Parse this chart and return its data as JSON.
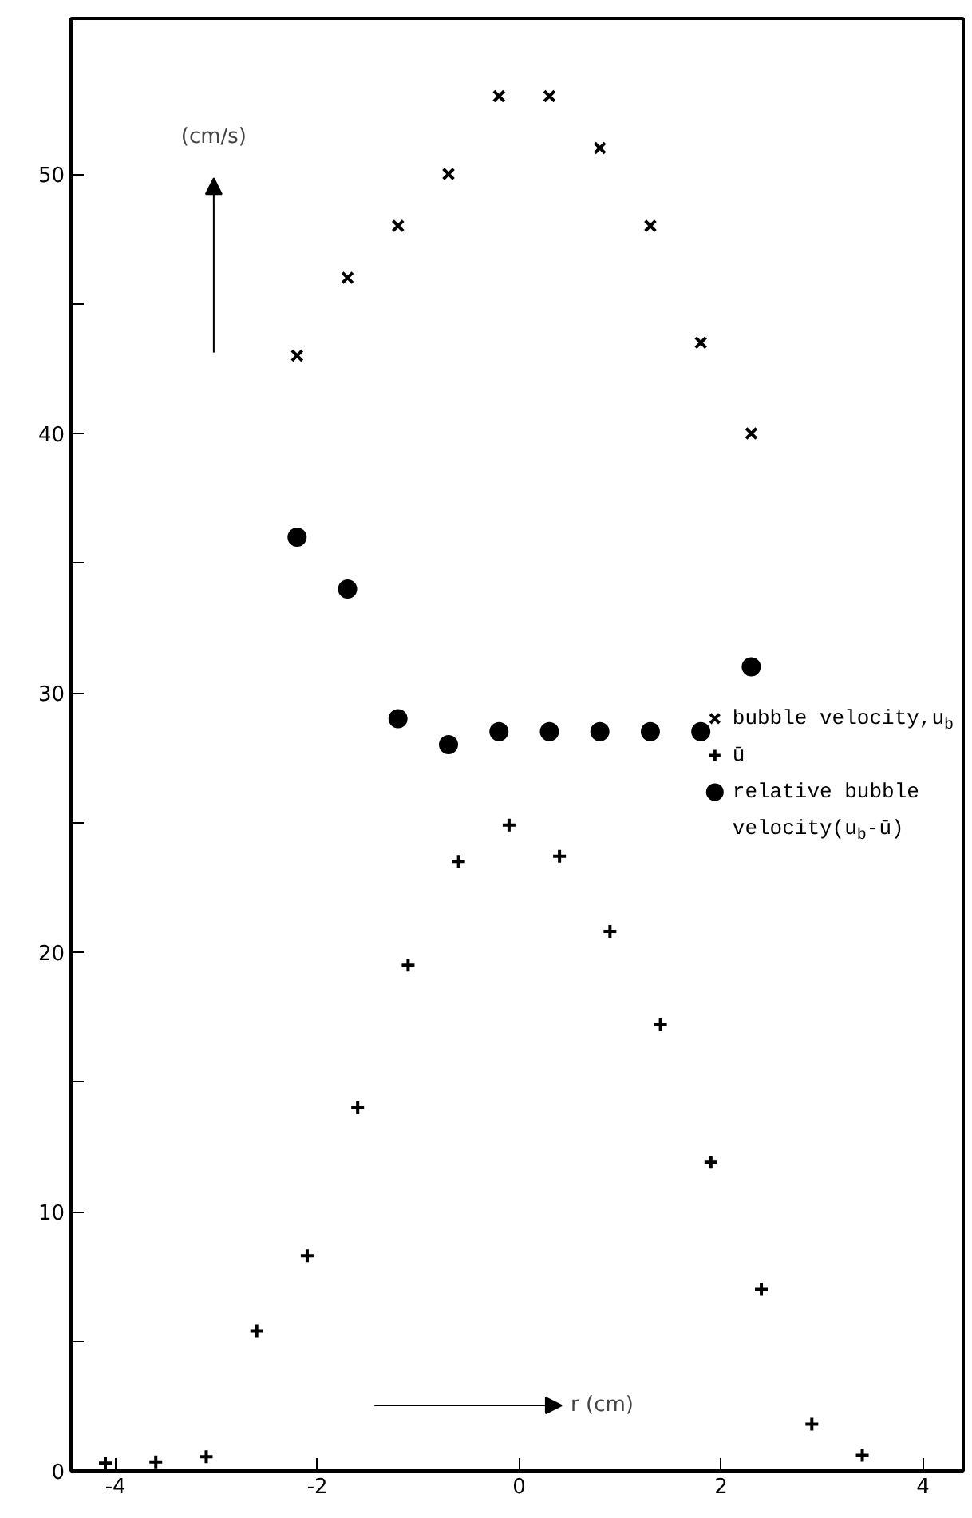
{
  "chart_data": {
    "type": "scatter",
    "xlabel": "r (cm)",
    "ylabel": "(cm/s)",
    "xlim": [
      -4.44,
      4.4
    ],
    "ylim": [
      0,
      56
    ],
    "xticks": [
      -4,
      -2,
      0,
      2,
      4
    ],
    "yticks": [
      0,
      {
        "value": 5,
        "label": null
      },
      10,
      {
        "value": 15,
        "label": null
      },
      20,
      {
        "value": 25,
        "label": null
      },
      30,
      {
        "value": 35,
        "label": null
      },
      40,
      {
        "value": 45,
        "label": null
      },
      50
    ],
    "grid": false,
    "legend": "center right",
    "series": [
      {
        "name": "bubble velocity,u$_{b}$",
        "color": "#000000",
        "marker": "x",
        "x": [
          -2.2,
          -1.7,
          -1.2,
          -0.7,
          -0.2,
          0.3,
          0.8,
          1.3,
          1.8,
          2.3
        ],
        "values": [
          43,
          46,
          48,
          50,
          53,
          53,
          51,
          48,
          43.5,
          40
        ]
      },
      {
        "name": "ū",
        "color": "#000000",
        "marker": "cross",
        "x": [
          -4.1,
          -3.6,
          -3.1,
          -2.6,
          -2.1,
          -1.6,
          -1.1,
          -0.6,
          -0.1,
          0.4,
          0.9,
          1.4,
          1.9,
          2.4,
          2.9,
          3.4
        ],
        "values": [
          0.3,
          0.35,
          0.55,
          5.4,
          8.3,
          14,
          19.5,
          23.5,
          24.9,
          23.7,
          20.8,
          17.2,
          11.9,
          7,
          1.8,
          0.6
        ]
      },
      {
        "name": "relative bubble velocity(u$_{b}$-ū)",
        "color": "#000000",
        "marker": "circle",
        "x": [
          -2.2,
          -1.7,
          -1.2,
          -0.7,
          -0.2,
          0.3,
          0.8,
          1.3,
          1.8,
          2.3
        ],
        "values": [
          36,
          34,
          29,
          28,
          28.5,
          28.5,
          28.5,
          28.5,
          28.5,
          31
        ]
      }
    ]
  }
}
